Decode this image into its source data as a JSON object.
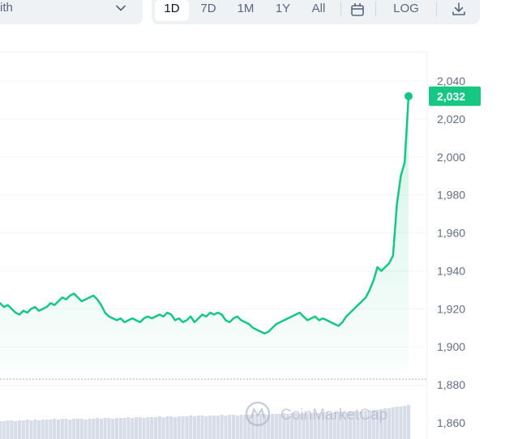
{
  "controls": {
    "dropdown_label": "ith",
    "timeframes": [
      "1D",
      "7D",
      "1M",
      "1Y",
      "All"
    ],
    "active_timeframe": "1D",
    "log_label": "LOG",
    "icons": [
      "chevron-down-icon",
      "calendar-icon",
      "download-icon"
    ]
  },
  "chart_data": {
    "type": "line",
    "title": "",
    "xlabel": "",
    "ylabel": "",
    "y_ticks": [
      "2,040",
      "2,020",
      "2,000",
      "1,980",
      "1,960",
      "1,940",
      "1,920",
      "1,900",
      "1,880",
      "1,860"
    ],
    "ylim": [
      1855,
      2045
    ],
    "grid": true,
    "current_price_label": "2,032",
    "current_price": 2032,
    "reference_line": 1883,
    "line_color": "#16c784",
    "watermark": "CoinMarketCap",
    "series": [
      {
        "values": [
          1923,
          1921,
          1922,
          1920,
          1918,
          1917,
          1919,
          1918,
          1920,
          1921,
          1919,
          1920,
          1921,
          1923,
          1922,
          1924,
          1926,
          1925,
          1927,
          1928,
          1926,
          1924,
          1925,
          1926,
          1927,
          1925,
          1922,
          1918,
          1916,
          1915,
          1914,
          1915,
          1913,
          1914,
          1915,
          1914,
          1913,
          1915,
          1916,
          1915,
          1916,
          1917,
          1916,
          1918,
          1917,
          1914,
          1915,
          1913,
          1914,
          1916,
          1913,
          1915,
          1917,
          1916,
          1918,
          1917,
          1918,
          1917,
          1914,
          1913,
          1915,
          1916,
          1914,
          1913,
          1912,
          1910,
          1909,
          1908,
          1907,
          1908,
          1910,
          1912,
          1913,
          1914,
          1915,
          1916,
          1917,
          1918,
          1916,
          1914,
          1915,
          1916,
          1914,
          1915,
          1914,
          1913,
          1912,
          1911,
          1913,
          1916,
          1918,
          1920,
          1922,
          1924,
          1926,
          1930,
          1935,
          1942,
          1940,
          1942,
          1944,
          1948,
          1975,
          1990,
          1997,
          2032
        ],
        "volume": [
          22,
          22,
          23,
          23,
          22,
          23,
          23,
          24,
          23,
          24,
          23,
          24,
          24,
          24,
          25,
          24,
          25,
          25,
          24,
          25,
          25,
          25,
          24,
          25,
          25,
          26,
          25,
          26,
          26,
          25,
          26,
          26,
          26,
          27,
          26,
          27,
          27,
          26,
          27,
          27,
          27,
          28,
          27,
          28,
          28,
          27,
          28,
          28,
          28,
          29,
          28,
          29,
          29,
          28,
          29,
          29,
          29,
          30,
          29,
          30,
          30,
          29,
          30,
          30,
          30,
          31,
          30,
          31,
          31,
          30,
          31,
          31,
          31,
          32,
          31,
          32,
          32,
          31,
          32,
          32,
          32,
          33,
          32,
          33,
          33,
          32,
          33,
          33,
          34,
          33,
          34,
          34,
          33,
          34,
          35,
          35,
          36,
          36,
          37,
          38,
          38,
          39,
          40,
          40,
          41,
          42
        ]
      }
    ]
  }
}
